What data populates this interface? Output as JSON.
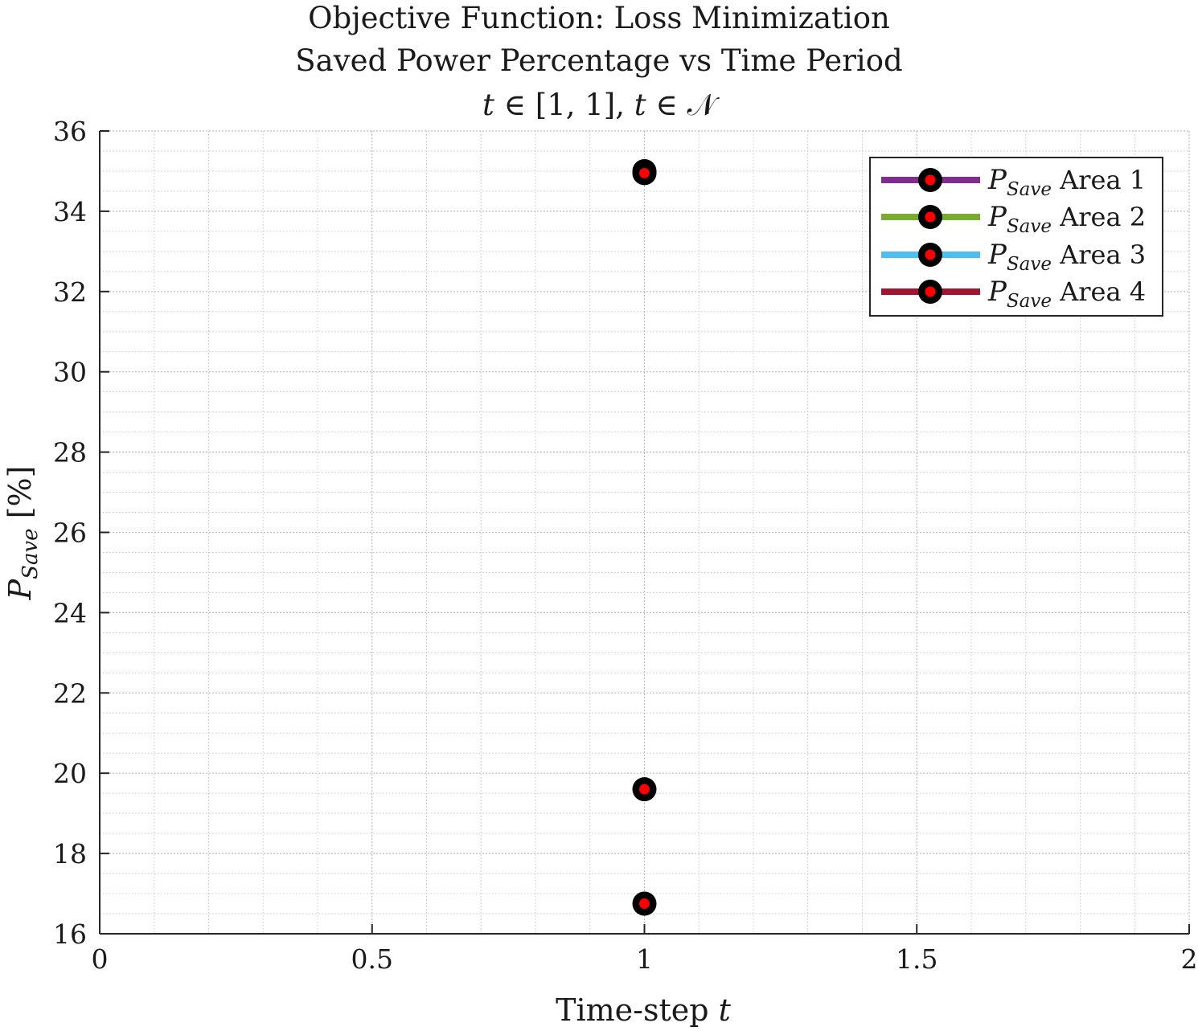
{
  "chart_data": {
    "type": "scatter",
    "title_lines": [
      "Objective Function: Loss Minimization",
      "Saved Power Percentage vs Time Period"
    ],
    "title_math": {
      "t1": "t",
      "op1": " ∈ [1, 1], ",
      "t2": "t",
      "op2": " ∈ ",
      "set": "𝒩"
    },
    "xlabel": {
      "text": "Time-step ",
      "var": "t"
    },
    "ylabel": {
      "var": "P",
      "sub": "Save",
      "unit": " [%]"
    },
    "xlim": [
      0,
      2
    ],
    "ylim": [
      16,
      36
    ],
    "xticks": [
      0,
      0.5,
      1,
      1.5,
      2
    ],
    "xtick_labels": [
      "0",
      "0.5",
      "1",
      "1.5",
      "2"
    ],
    "yticks": [
      16,
      18,
      20,
      22,
      24,
      26,
      28,
      30,
      32,
      34,
      36
    ],
    "ytick_labels": [
      "16",
      "18",
      "20",
      "22",
      "24",
      "26",
      "28",
      "30",
      "32",
      "34",
      "36"
    ],
    "grid": true,
    "minor_grid": true,
    "legend_position": "top-right",
    "marker": {
      "edge": "#000000",
      "face": "#ff0000"
    },
    "series": [
      {
        "legend_var": "P",
        "legend_sub": "Save",
        "legend_text": " Area 1",
        "color": "#7e2f8e",
        "x": [
          1
        ],
        "y": [
          16.75
        ]
      },
      {
        "legend_var": "P",
        "legend_sub": "Save",
        "legend_text": " Area 2",
        "color": "#77ac30",
        "x": [
          1
        ],
        "y": [
          19.6
        ]
      },
      {
        "legend_var": "P",
        "legend_sub": "Save",
        "legend_text": " Area 3",
        "color": "#4dbeee",
        "x": [
          1
        ],
        "y": [
          35.0
        ]
      },
      {
        "legend_var": "P",
        "legend_sub": "Save",
        "legend_text": " Area 4",
        "color": "#a2142f",
        "x": [
          1
        ],
        "y": [
          34.95
        ]
      }
    ]
  }
}
